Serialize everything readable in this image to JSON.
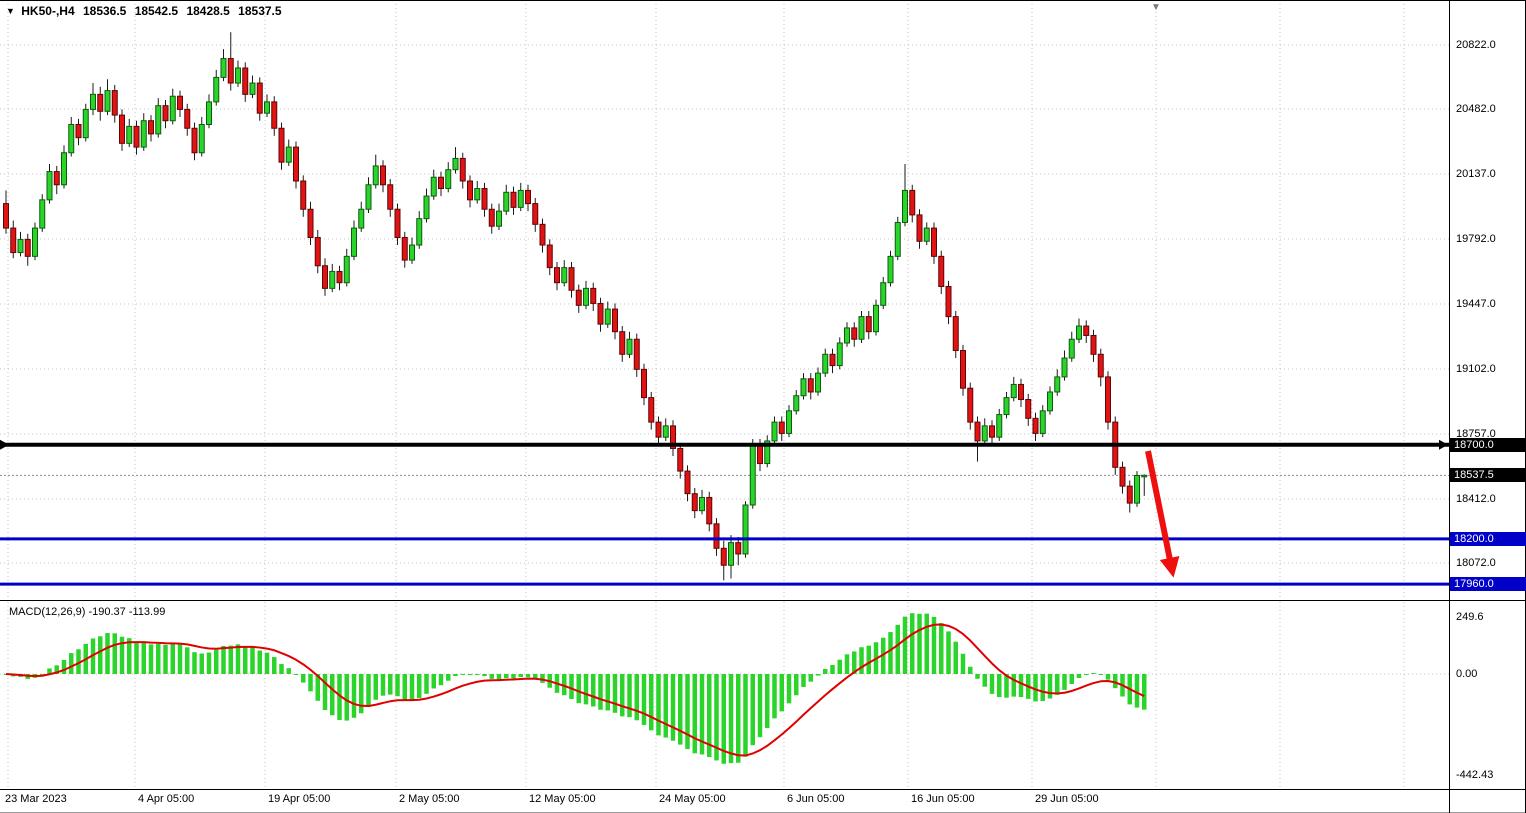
{
  "header": {
    "dropdown_icon": "▼",
    "symbol_period": "HK50-,H4",
    "open": "18536.5",
    "high": "18542.5",
    "low": "18428.5",
    "close": "18537.5",
    "shift_marker_icon": "▼"
  },
  "price_axis": {
    "labels": [
      {
        "text": "20822.0",
        "value": 20822
      },
      {
        "text": "20482.0",
        "value": 20482
      },
      {
        "text": "20137.0",
        "value": 20137
      },
      {
        "text": "19792.0",
        "value": 19792
      },
      {
        "text": "19447.0",
        "value": 19447
      },
      {
        "text": "19102.0",
        "value": 19102
      },
      {
        "text": "18757.0",
        "value": 18757
      },
      {
        "text": "18412.0",
        "value": 18412
      },
      {
        "text": "18072.0",
        "value": 18072
      }
    ]
  },
  "badges": [
    {
      "text": "18700.0",
      "value": 18700,
      "bg": "#000000"
    },
    {
      "text": "18537.5",
      "value": 18537.5,
      "bg": "#000000"
    },
    {
      "text": "18200.0",
      "value": 18200,
      "bg": "#0000c8"
    },
    {
      "text": "17960.0",
      "value": 17960,
      "bg": "#0000c8"
    }
  ],
  "hlines": [
    {
      "name": "resistance-line-18700",
      "value": 18700,
      "color": "#000000",
      "width": 4
    },
    {
      "name": "support-line-18200",
      "value": 18200,
      "color": "#0000c8",
      "width": 3
    },
    {
      "name": "support-line-17960",
      "value": 17960,
      "color": "#0000c8",
      "width": 3
    }
  ],
  "current_price": {
    "value": 18537.5,
    "color": "#8c8c8c"
  },
  "time_axis": {
    "labels": [
      "23 Mar 2023",
      "4 Apr 05:00",
      "19 Apr 05:00",
      "2 May 05:00",
      "12 May 05:00",
      "24 May 05:00",
      "6 Jun 05:00",
      "16 Jun 05:00",
      "29 Jun 05:00"
    ]
  },
  "macd": {
    "label": "MACD(12,26,9) -190.37 -113.99",
    "fast": 12,
    "slow": 26,
    "signal": 9,
    "main_value": -190.37,
    "signal_value": -113.99,
    "axis_labels": [
      {
        "text": "249.6",
        "value": 249.6
      },
      {
        "text": "0.00",
        "value": 0
      },
      {
        "text": "-442.43",
        "value": -442.43
      }
    ]
  },
  "colors": {
    "up": "#2bd42b",
    "up_border": "#0d5c0d",
    "down": "#e31313",
    "down_border": "#5a0707",
    "wick": "#1b1b1b",
    "grid": "#c6c6c6",
    "price_line": "#8c8c8c",
    "macd_bar": "#2bd42b",
    "macd_signal": "#e00000",
    "arrow": "#ee0f0f"
  },
  "chart_data": {
    "type": "candlestick",
    "title": "HK50-,H4",
    "x_tick_labels": [
      "23 Mar 2023",
      "4 Apr 05:00",
      "19 Apr 05:00",
      "2 May 05:00",
      "12 May 05:00",
      "24 May 05:00",
      "6 Jun 05:00",
      "16 Jun 05:00",
      "29 Jun 05:00"
    ],
    "ylim": [
      17800,
      20950
    ],
    "price_gridlines": [
      20822,
      20482,
      20137,
      19792,
      19447,
      19102,
      18757,
      18412,
      18072
    ],
    "overlay_levels": [
      18700,
      18200,
      17960
    ],
    "last_price": 18537.5,
    "indicator": {
      "type": "MACD",
      "fast": 12,
      "slow": 26,
      "signal": 9,
      "last_macd": -190.37,
      "last_signal": -113.99,
      "ylim": [
        -442.43,
        249.6
      ],
      "legend_position": "top-left"
    },
    "ohlc_format": [
      "open",
      "high",
      "low",
      "close"
    ],
    "ohlc": [
      [
        19980,
        20050,
        19820,
        19850
      ],
      [
        19850,
        19890,
        19690,
        19720
      ],
      [
        19720,
        19830,
        19700,
        19790
      ],
      [
        19790,
        19820,
        19650,
        19700
      ],
      [
        19700,
        19880,
        19680,
        19850
      ],
      [
        19850,
        20030,
        19830,
        20000
      ],
      [
        20000,
        20190,
        19980,
        20150
      ],
      [
        20150,
        20180,
        20030,
        20080
      ],
      [
        20080,
        20290,
        20060,
        20250
      ],
      [
        20250,
        20440,
        20230,
        20400
      ],
      [
        20400,
        20430,
        20290,
        20330
      ],
      [
        20330,
        20510,
        20310,
        20480
      ],
      [
        20480,
        20620,
        20450,
        20560
      ],
      [
        20560,
        20600,
        20420,
        20470
      ],
      [
        20470,
        20640,
        20450,
        20580
      ],
      [
        20580,
        20610,
        20410,
        20450
      ],
      [
        20450,
        20480,
        20260,
        20300
      ],
      [
        20300,
        20430,
        20280,
        20390
      ],
      [
        20390,
        20420,
        20240,
        20280
      ],
      [
        20280,
        20460,
        20260,
        20420
      ],
      [
        20420,
        20450,
        20310,
        20350
      ],
      [
        20350,
        20540,
        20330,
        20500
      ],
      [
        20500,
        20530,
        20380,
        20420
      ],
      [
        20420,
        20590,
        20400,
        20550
      ],
      [
        20550,
        20580,
        20440,
        20480
      ],
      [
        20480,
        20510,
        20340,
        20380
      ],
      [
        20380,
        20410,
        20210,
        20250
      ],
      [
        20250,
        20440,
        20230,
        20400
      ],
      [
        20400,
        20560,
        20380,
        20520
      ],
      [
        20520,
        20690,
        20500,
        20650
      ],
      [
        20650,
        20800,
        20630,
        20750
      ],
      [
        20750,
        20890,
        20580,
        20620
      ],
      [
        20620,
        20740,
        20600,
        20700
      ],
      [
        20700,
        20730,
        20520,
        20560
      ],
      [
        20560,
        20660,
        20540,
        20620
      ],
      [
        20620,
        20650,
        20420,
        20460
      ],
      [
        20460,
        20560,
        20440,
        20520
      ],
      [
        20520,
        20550,
        20340,
        20380
      ],
      [
        20380,
        20410,
        20160,
        20200
      ],
      [
        20200,
        20320,
        20180,
        20280
      ],
      [
        20280,
        20310,
        20060,
        20100
      ],
      [
        20100,
        20130,
        19910,
        19950
      ],
      [
        19950,
        19990,
        19760,
        19800
      ],
      [
        19800,
        19840,
        19610,
        19650
      ],
      [
        19650,
        19690,
        19490,
        19530
      ],
      [
        19530,
        19660,
        19510,
        19620
      ],
      [
        19620,
        19650,
        19520,
        19560
      ],
      [
        19560,
        19740,
        19540,
        19700
      ],
      [
        19700,
        19890,
        19680,
        19850
      ],
      [
        19850,
        19990,
        19830,
        19950
      ],
      [
        19950,
        20120,
        19930,
        20080
      ],
      [
        20080,
        20240,
        20060,
        20180
      ],
      [
        20180,
        20210,
        20040,
        20080
      ],
      [
        20080,
        20110,
        19910,
        19950
      ],
      [
        19950,
        19980,
        19760,
        19800
      ],
      [
        19800,
        19830,
        19640,
        19680
      ],
      [
        19680,
        19800,
        19660,
        19760
      ],
      [
        19760,
        19940,
        19740,
        19900
      ],
      [
        19900,
        20060,
        19880,
        20020
      ],
      [
        20020,
        20160,
        20000,
        20120
      ],
      [
        20120,
        20150,
        20020,
        20060
      ],
      [
        20060,
        20200,
        20040,
        20160
      ],
      [
        20160,
        20280,
        20140,
        20220
      ],
      [
        20220,
        20250,
        20060,
        20100
      ],
      [
        20100,
        20130,
        19960,
        20000
      ],
      [
        20000,
        20100,
        19980,
        20060
      ],
      [
        20060,
        20090,
        19910,
        19950
      ],
      [
        19950,
        19980,
        19820,
        19860
      ],
      [
        19860,
        19980,
        19840,
        19940
      ],
      [
        19940,
        20080,
        19920,
        20040
      ],
      [
        20040,
        20070,
        19920,
        19960
      ],
      [
        19960,
        20090,
        19940,
        20050
      ],
      [
        20050,
        20080,
        19940,
        19980
      ],
      [
        19980,
        20010,
        19830,
        19870
      ],
      [
        19870,
        19900,
        19720,
        19760
      ],
      [
        19760,
        19790,
        19600,
        19640
      ],
      [
        19640,
        19670,
        19520,
        19560
      ],
      [
        19560,
        19680,
        19540,
        19640
      ],
      [
        19640,
        19670,
        19480,
        19520
      ],
      [
        19520,
        19550,
        19400,
        19440
      ],
      [
        19440,
        19570,
        19420,
        19530
      ],
      [
        19530,
        19560,
        19410,
        19450
      ],
      [
        19450,
        19480,
        19300,
        19340
      ],
      [
        19340,
        19460,
        19320,
        19420
      ],
      [
        19420,
        19450,
        19260,
        19300
      ],
      [
        19300,
        19330,
        19140,
        19180
      ],
      [
        19180,
        19300,
        19160,
        19260
      ],
      [
        19260,
        19290,
        19060,
        19100
      ],
      [
        19100,
        19130,
        18910,
        18950
      ],
      [
        18950,
        18980,
        18780,
        18820
      ],
      [
        18820,
        18850,
        18700,
        18740
      ],
      [
        18740,
        18840,
        18720,
        18800
      ],
      [
        18800,
        18830,
        18640,
        18680
      ],
      [
        18680,
        18710,
        18520,
        18560
      ],
      [
        18560,
        18590,
        18400,
        18440
      ],
      [
        18440,
        18470,
        18310,
        18350
      ],
      [
        18350,
        18460,
        18330,
        18420
      ],
      [
        18420,
        18450,
        18240,
        18280
      ],
      [
        18280,
        18310,
        18110,
        18150
      ],
      [
        18150,
        18190,
        17980,
        18060
      ],
      [
        18060,
        18220,
        17990,
        18180
      ],
      [
        18180,
        18210,
        18060,
        18120
      ],
      [
        18120,
        18400,
        18100,
        18380
      ],
      [
        18380,
        18730,
        18360,
        18700
      ],
      [
        18700,
        18730,
        18560,
        18600
      ],
      [
        18600,
        18750,
        18580,
        18720
      ],
      [
        18720,
        18850,
        18700,
        18820
      ],
      [
        18820,
        18850,
        18720,
        18760
      ],
      [
        18760,
        18910,
        18740,
        18880
      ],
      [
        18880,
        18990,
        18860,
        18960
      ],
      [
        18960,
        19080,
        18940,
        19050
      ],
      [
        19050,
        19080,
        18940,
        18980
      ],
      [
        18980,
        19110,
        18960,
        19080
      ],
      [
        19080,
        19210,
        19060,
        19180
      ],
      [
        19180,
        19210,
        19080,
        19120
      ],
      [
        19120,
        19270,
        19100,
        19240
      ],
      [
        19240,
        19350,
        19220,
        19320
      ],
      [
        19320,
        19350,
        19220,
        19260
      ],
      [
        19260,
        19410,
        19240,
        19380
      ],
      [
        19380,
        19410,
        19260,
        19300
      ],
      [
        19300,
        19470,
        19280,
        19440
      ],
      [
        19440,
        19590,
        19420,
        19560
      ],
      [
        19560,
        19730,
        19540,
        19700
      ],
      [
        19700,
        19910,
        19680,
        19880
      ],
      [
        19880,
        20190,
        19860,
        20050
      ],
      [
        20050,
        20080,
        19880,
        19920
      ],
      [
        19920,
        19950,
        19740,
        19780
      ],
      [
        19780,
        19880,
        19760,
        19850
      ],
      [
        19850,
        19880,
        19660,
        19700
      ],
      [
        19700,
        19730,
        19500,
        19540
      ],
      [
        19540,
        19570,
        19340,
        19380
      ],
      [
        19380,
        19410,
        19160,
        19200
      ],
      [
        19200,
        19230,
        18960,
        19000
      ],
      [
        19000,
        19030,
        18780,
        18820
      ],
      [
        18820,
        18850,
        18610,
        18720
      ],
      [
        18720,
        18840,
        18700,
        18800
      ],
      [
        18800,
        18830,
        18700,
        18740
      ],
      [
        18740,
        18890,
        18720,
        18860
      ],
      [
        18860,
        18980,
        18840,
        18950
      ],
      [
        18950,
        19060,
        18930,
        19020
      ],
      [
        19020,
        19050,
        18900,
        18940
      ],
      [
        18940,
        18970,
        18800,
        18840
      ],
      [
        18840,
        18870,
        18720,
        18760
      ],
      [
        18760,
        18910,
        18740,
        18880
      ],
      [
        18880,
        19010,
        18860,
        18980
      ],
      [
        18980,
        19100,
        18960,
        19060
      ],
      [
        19060,
        19200,
        19040,
        19160
      ],
      [
        19160,
        19300,
        19140,
        19260
      ],
      [
        19260,
        19370,
        19240,
        19330
      ],
      [
        19330,
        19360,
        19240,
        19280
      ],
      [
        19280,
        19310,
        19140,
        19180
      ],
      [
        19180,
        19210,
        19010,
        19060
      ],
      [
        19060,
        19090,
        18780,
        18820
      ],
      [
        18820,
        18850,
        18540,
        18580
      ],
      [
        18580,
        18610,
        18440,
        18480
      ],
      [
        18480,
        18510,
        18340,
        18390
      ],
      [
        18390,
        18560,
        18370,
        18536.5
      ],
      [
        18536.5,
        18542.5,
        18428.5,
        18537.5
      ]
    ]
  }
}
